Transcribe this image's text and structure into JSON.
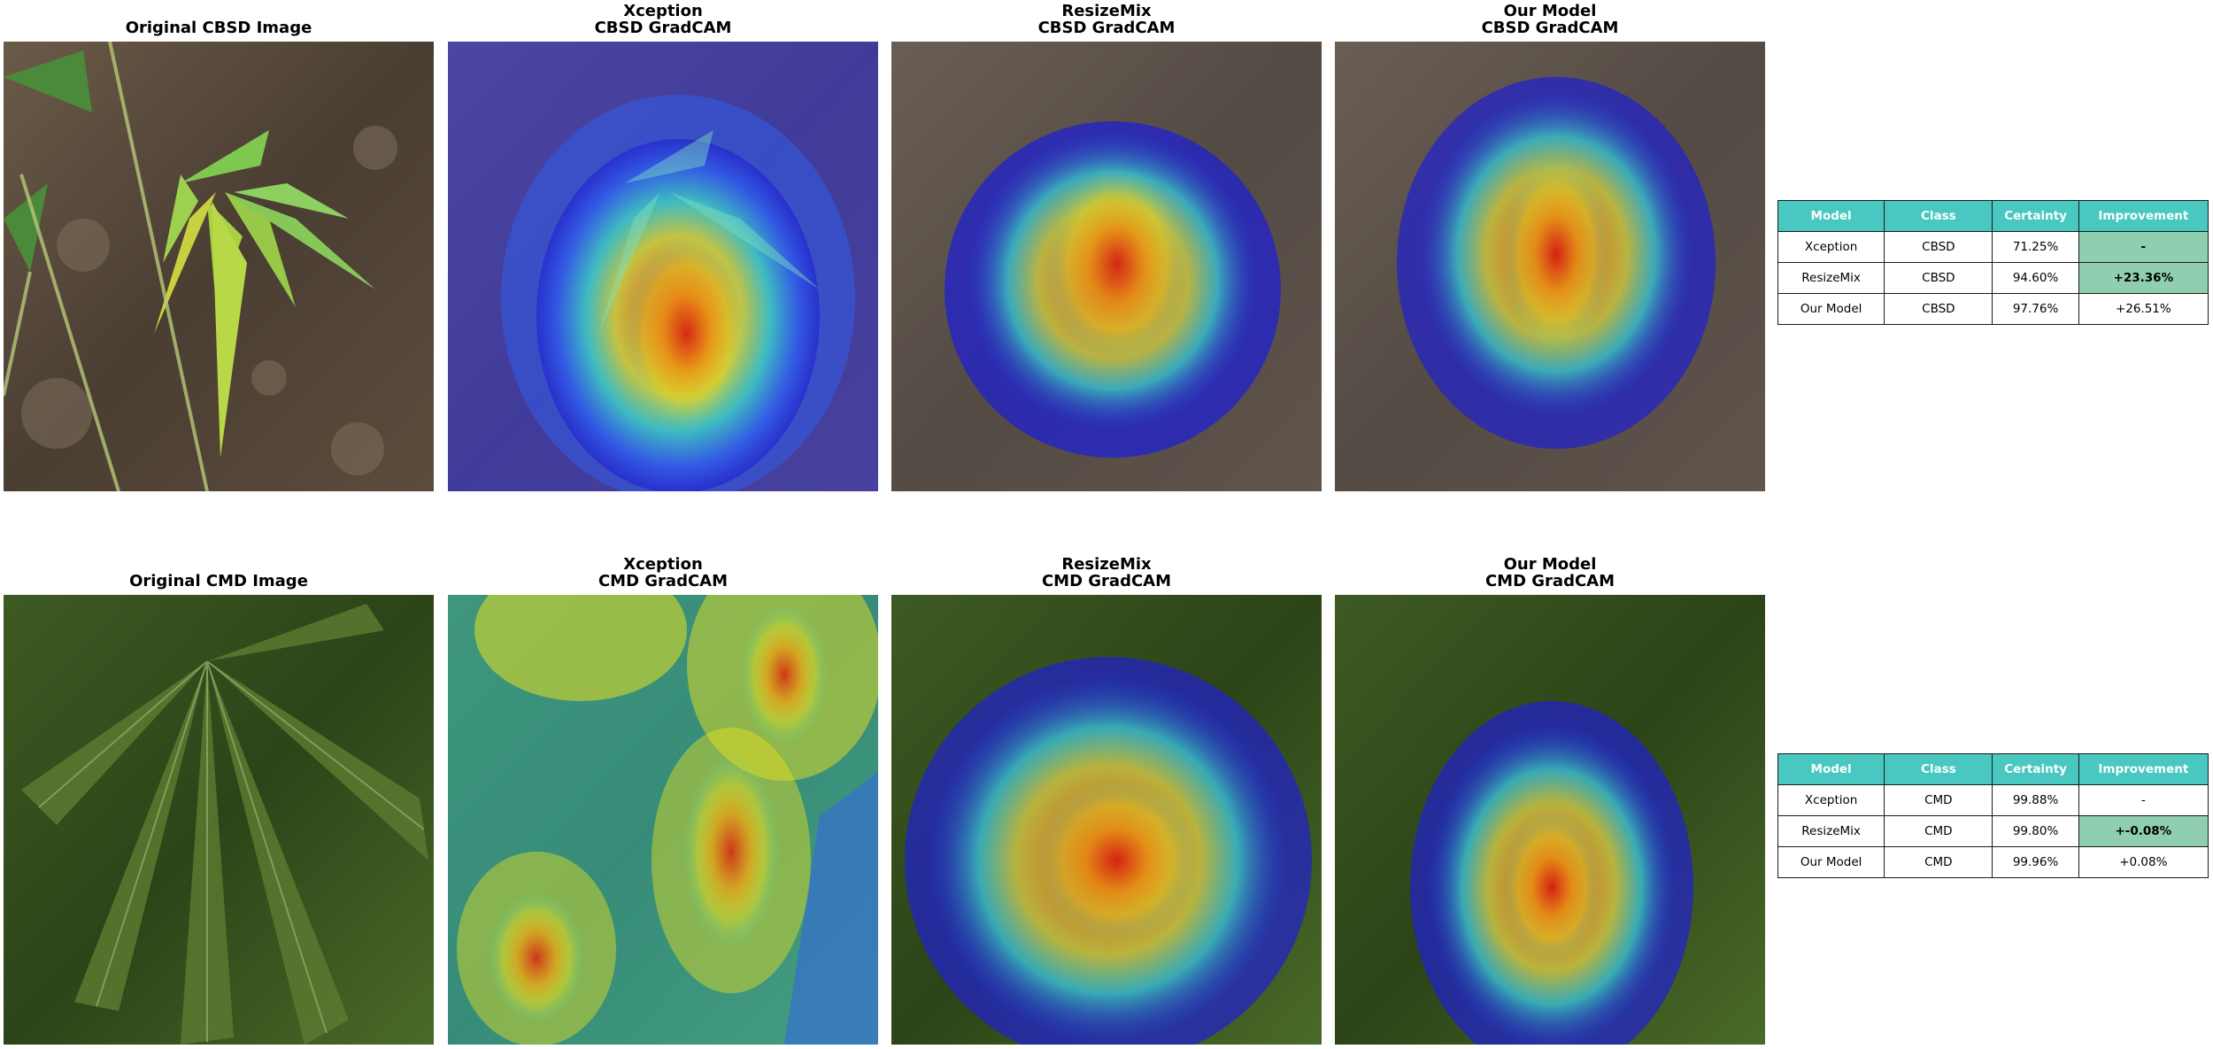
{
  "rows": [
    {
      "panels": [
        {
          "title_line1": "Original CBSD Image",
          "title_line2": ""
        },
        {
          "title_line1": "Xception",
          "title_line2": "CBSD GradCAM"
        },
        {
          "title_line1": "ResizeMix",
          "title_line2": "CBSD GradCAM"
        },
        {
          "title_line1": "Our Model",
          "title_line2": "CBSD GradCAM"
        }
      ],
      "table": {
        "headers": [
          "Model",
          "Class",
          "Certainty",
          "Improvement"
        ],
        "rows": [
          {
            "model": "Xception",
            "class": "CBSD",
            "certainty": "71.25%",
            "improvement": "-",
            "highlight": true
          },
          {
            "model": "ResizeMix",
            "class": "CBSD",
            "certainty": "94.60%",
            "improvement": "+23.36%",
            "highlight": true
          },
          {
            "model": "Our Model",
            "class": "CBSD",
            "certainty": "97.76%",
            "improvement": "+26.51%",
            "highlight": false
          }
        ]
      }
    },
    {
      "panels": [
        {
          "title_line1": "Original CMD Image",
          "title_line2": ""
        },
        {
          "title_line1": "Xception",
          "title_line2": "CMD GradCAM"
        },
        {
          "title_line1": "ResizeMix",
          "title_line2": "CMD GradCAM"
        },
        {
          "title_line1": "Our Model",
          "title_line2": "CMD GradCAM"
        }
      ],
      "table": {
        "headers": [
          "Model",
          "Class",
          "Certainty",
          "Improvement"
        ],
        "rows": [
          {
            "model": "Xception",
            "class": "CMD",
            "certainty": "99.88%",
            "improvement": "-",
            "highlight": false
          },
          {
            "model": "ResizeMix",
            "class": "CMD",
            "certainty": "99.80%",
            "improvement": "+-0.08%",
            "highlight": true
          },
          {
            "model": "Our Model",
            "class": "CMD",
            "certainty": "99.96%",
            "improvement": "+0.08%",
            "highlight": false
          }
        ]
      }
    }
  ],
  "colors": {
    "table_header": "#48c8c0",
    "table_highlight": "#8fcfb0",
    "heat_low": "#2020d0",
    "heat_mid": "#40e0c0",
    "heat_high": "#f0e020",
    "heat_peak": "#e03010"
  }
}
